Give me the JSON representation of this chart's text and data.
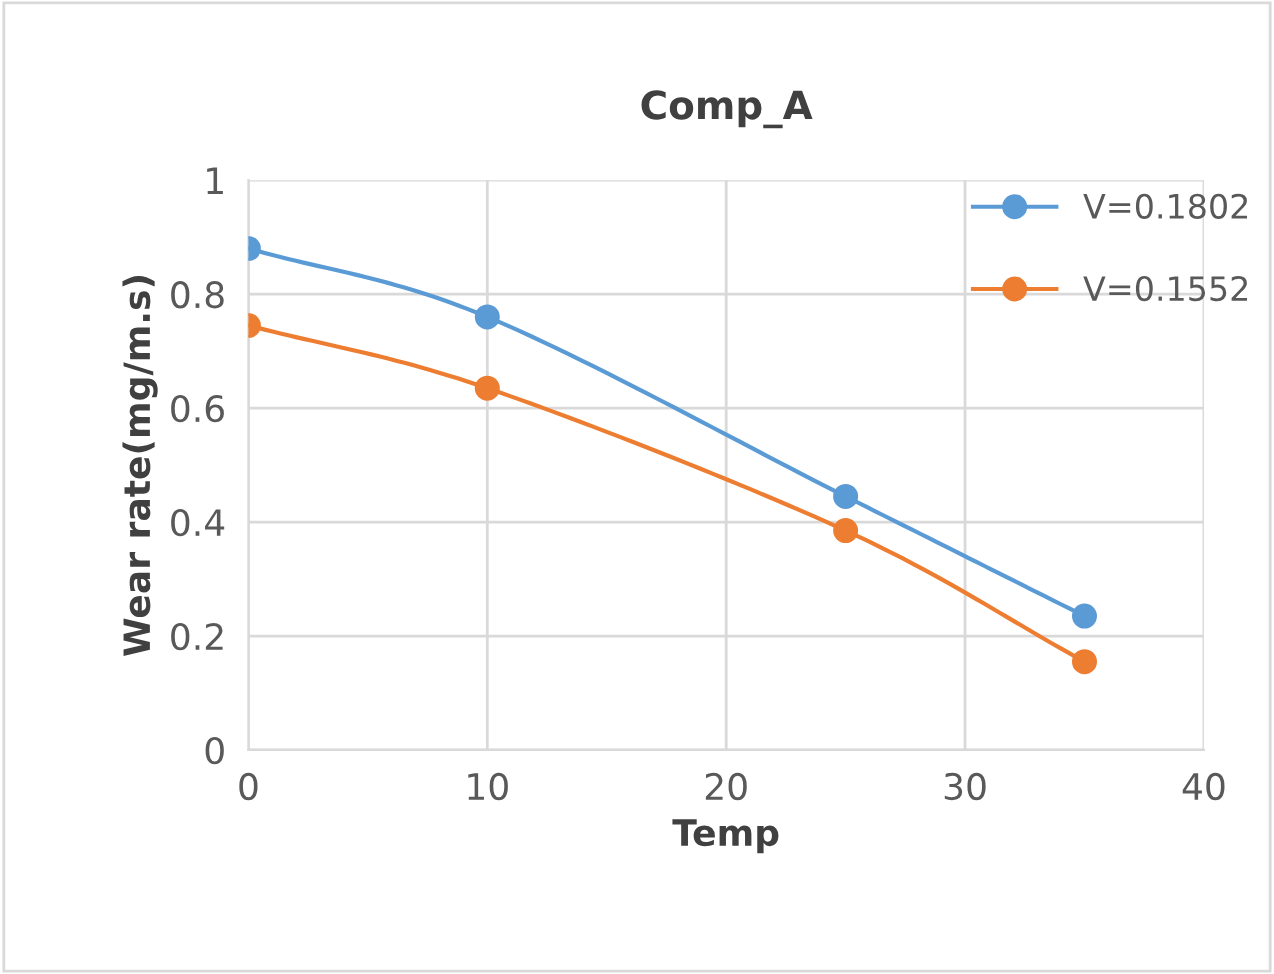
{
  "chart_data": {
    "type": "line",
    "title": "Comp_A",
    "xlabel": "Temp",
    "ylabel": "Wear rate(mg/m.s)",
    "x": [
      0,
      10,
      25,
      35
    ],
    "series": [
      {
        "name": "V=0.1802",
        "color": "#5b9bd5",
        "values": [
          0.88,
          0.76,
          0.445,
          0.235
        ]
      },
      {
        "name": "V=0.1552",
        "color": "#ed7d31",
        "values": [
          0.745,
          0.635,
          0.385,
          0.155
        ]
      }
    ],
    "xlim": [
      0,
      40
    ],
    "xticks": [
      0,
      10,
      20,
      30,
      40
    ],
    "ylim": [
      0,
      1
    ],
    "yticks": [
      0,
      0.2,
      0.4,
      0.6,
      0.8,
      {
        "value": 1,
        "label": "1"
      }
    ],
    "grid": true,
    "legend": "top right",
    "marker": "circle",
    "line_style": "solid"
  }
}
